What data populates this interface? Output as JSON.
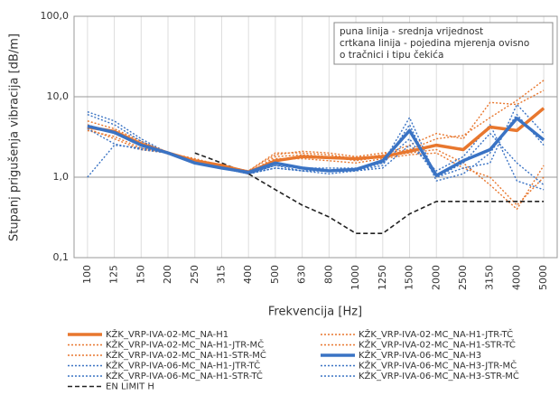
{
  "chart_data": {
    "type": "line",
    "y_label": "Stupanj prigušenja vibracija [dB/m]",
    "x_label": "Frekvencija [Hz]",
    "annotation": [
      "puna linija - srednja vrijednost",
      "crtkana linija - pojedina mjerenja ovisno",
      "o tračnici i tipu čekića"
    ],
    "categories": [
      "100",
      "125",
      "150",
      "200",
      "250",
      "315",
      "400",
      "500",
      "630",
      "800",
      "1000",
      "1250",
      "1500",
      "2000",
      "2500",
      "3150",
      "4000",
      "5000"
    ],
    "log_y": true,
    "ylim": [
      0.1,
      100
    ],
    "yticks": [
      {
        "value": 100,
        "label": "100,0"
      },
      {
        "value": 10,
        "label": "10,0"
      },
      {
        "value": 1,
        "label": "1,0"
      },
      {
        "value": 0.1,
        "label": "0,1"
      }
    ],
    "grid": true,
    "series": [
      {
        "name": "KŽK_VRP-IVA-02-MC_NA-H1",
        "color": "#e8772e",
        "style": "solid",
        "values": [
          4.2,
          3.7,
          2.6,
          2.0,
          1.6,
          1.4,
          1.15,
          1.6,
          1.8,
          1.75,
          1.7,
          1.8,
          2.1,
          2.5,
          2.2,
          4.2,
          3.8,
          7.2
        ]
      },
      {
        "name": "KŽK_VRP-IVA-02-MC_NA-H1-JTR-TČ",
        "color": "#e8772e",
        "style": "dotted",
        "values": [
          5.0,
          4.0,
          2.8,
          2.0,
          1.6,
          1.4,
          1.2,
          1.9,
          2.1,
          2.0,
          1.8,
          2.0,
          2.2,
          3.0,
          3.3,
          5.5,
          9.0,
          16.0
        ]
      },
      {
        "name": "KŽK_VRP-IVA-02-MC_NA-H1-JTR-MČ",
        "color": "#e8772e",
        "style": "dotted",
        "values": [
          4.5,
          3.5,
          2.5,
          2.0,
          1.7,
          1.4,
          1.2,
          2.0,
          2.0,
          1.9,
          1.7,
          1.9,
          2.5,
          3.5,
          3.0,
          8.5,
          8.0,
          12.0
        ]
      },
      {
        "name": "KŽK_VRP-IVA-02-MC_NA-H1-STR-TČ",
        "color": "#e8772e",
        "style": "dotted",
        "values": [
          4.0,
          3.0,
          2.2,
          2.0,
          1.6,
          1.3,
          1.1,
          1.8,
          1.9,
          1.8,
          1.6,
          1.8,
          2.0,
          2.2,
          1.5,
          0.8,
          0.4,
          1.4
        ]
      },
      {
        "name": "KŽK_VRP-IVA-02-MC_NA-H1-STR-MČ",
        "color": "#e8772e",
        "style": "dotted",
        "values": [
          3.8,
          3.2,
          2.3,
          2.0,
          1.5,
          1.3,
          1.1,
          1.7,
          1.7,
          1.6,
          1.5,
          1.7,
          1.9,
          2.0,
          1.3,
          1.0,
          0.45,
          1.0
        ]
      },
      {
        "name": "KŽK_VRP-IVA-06-MC_NA-H3",
        "color": "#3a73c4",
        "style": "solid",
        "values": [
          4.3,
          3.6,
          2.5,
          2.0,
          1.5,
          1.3,
          1.15,
          1.5,
          1.3,
          1.2,
          1.25,
          1.6,
          3.8,
          1.05,
          1.6,
          2.2,
          5.4,
          2.9
        ]
      },
      {
        "name": "KŽK_VRP-IVA-06-MC_NA-H1-JTR-TČ",
        "color": "#3a73c4",
        "style": "dotted",
        "values": [
          6.5,
          5.0,
          3.0,
          2.0,
          1.5,
          1.3,
          1.1,
          1.4,
          1.3,
          1.3,
          1.3,
          1.5,
          5.5,
          1.0,
          1.3,
          1.5,
          8.0,
          3.5
        ]
      },
      {
        "name": "KŽK_VRP-IVA-06-MC_NA-H3-JTR-MČ",
        "color": "#3a73c4",
        "style": "dotted",
        "values": [
          6.0,
          4.5,
          2.8,
          2.0,
          1.5,
          1.3,
          1.1,
          1.3,
          1.2,
          1.2,
          1.2,
          1.4,
          4.5,
          0.9,
          1.1,
          2.0,
          6.0,
          2.5
        ]
      },
      {
        "name": "KŽK_VRP-IVA-06-MC_NA-H1-STR-TČ",
        "color": "#3a73c4",
        "style": "dotted",
        "values": [
          1.0,
          2.5,
          2.3,
          2.0,
          1.5,
          1.3,
          1.1,
          1.4,
          1.2,
          1.2,
          1.2,
          1.5,
          3.0,
          1.0,
          1.5,
          3.5,
          1.5,
          0.8
        ]
      },
      {
        "name": "KŽK_VRP-IVA-06-MC_NA-H3-STR-MČ",
        "color": "#3a73c4",
        "style": "dotted",
        "values": [
          4.0,
          2.6,
          2.2,
          2.0,
          1.5,
          1.3,
          1.1,
          1.3,
          1.2,
          1.1,
          1.2,
          1.3,
          2.5,
          1.2,
          1.8,
          4.5,
          0.9,
          0.7
        ]
      },
      {
        "name": "EN LIMIT H",
        "color": "#222222",
        "style": "dashed",
        "values": [
          null,
          null,
          null,
          null,
          2.0,
          1.5,
          1.1,
          0.7,
          0.45,
          0.32,
          0.2,
          0.2,
          0.35,
          0.5,
          0.5,
          0.5,
          0.5,
          0.5
        ]
      }
    ]
  }
}
